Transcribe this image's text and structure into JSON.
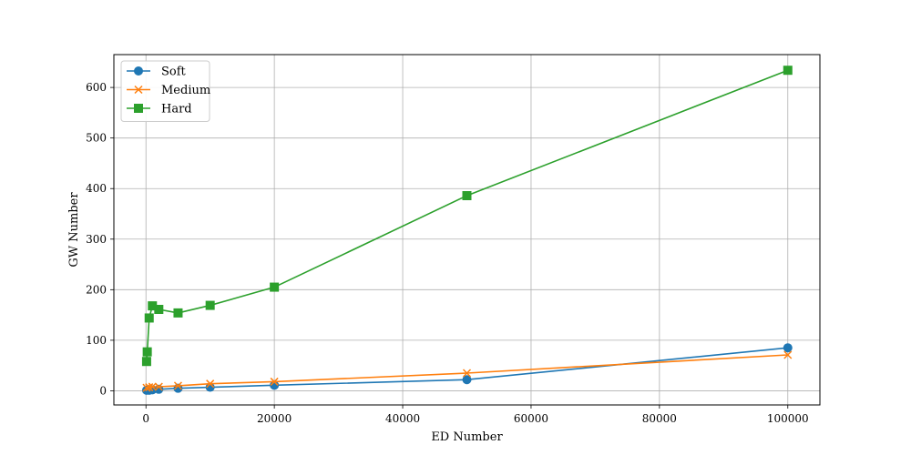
{
  "chart_data": {
    "type": "line",
    "xlabel": "ED Number",
    "ylabel": "GW Number",
    "xlim": [
      -5000,
      105000
    ],
    "ylim": [
      -28,
      665
    ],
    "xticks": [
      0,
      20000,
      40000,
      60000,
      80000,
      100000
    ],
    "yticks": [
      0,
      100,
      200,
      300,
      400,
      500,
      600
    ],
    "grid": true,
    "legend_position": "top-left",
    "series": [
      {
        "name": "Soft",
        "color": "#1f77b4",
        "marker": "circle",
        "x": [
          100,
          500,
          1000,
          2000,
          5000,
          10000,
          20000,
          50000,
          100000
        ],
        "y": [
          1,
          1,
          2,
          3,
          5,
          7,
          11,
          22,
          85
        ]
      },
      {
        "name": "Medium",
        "color": "#ff7f0e",
        "marker": "x",
        "x": [
          100,
          500,
          1000,
          2000,
          5000,
          10000,
          20000,
          50000,
          100000
        ],
        "y": [
          6,
          7,
          8,
          8,
          10,
          14,
          18,
          35,
          71
        ]
      },
      {
        "name": "Hard",
        "color": "#2ca02c",
        "marker": "square",
        "x": [
          100,
          200,
          500,
          1000,
          2000,
          5000,
          10000,
          20000,
          50000,
          100000
        ],
        "y": [
          58,
          77,
          144,
          168,
          161,
          154,
          169,
          205,
          386,
          634
        ]
      }
    ]
  }
}
